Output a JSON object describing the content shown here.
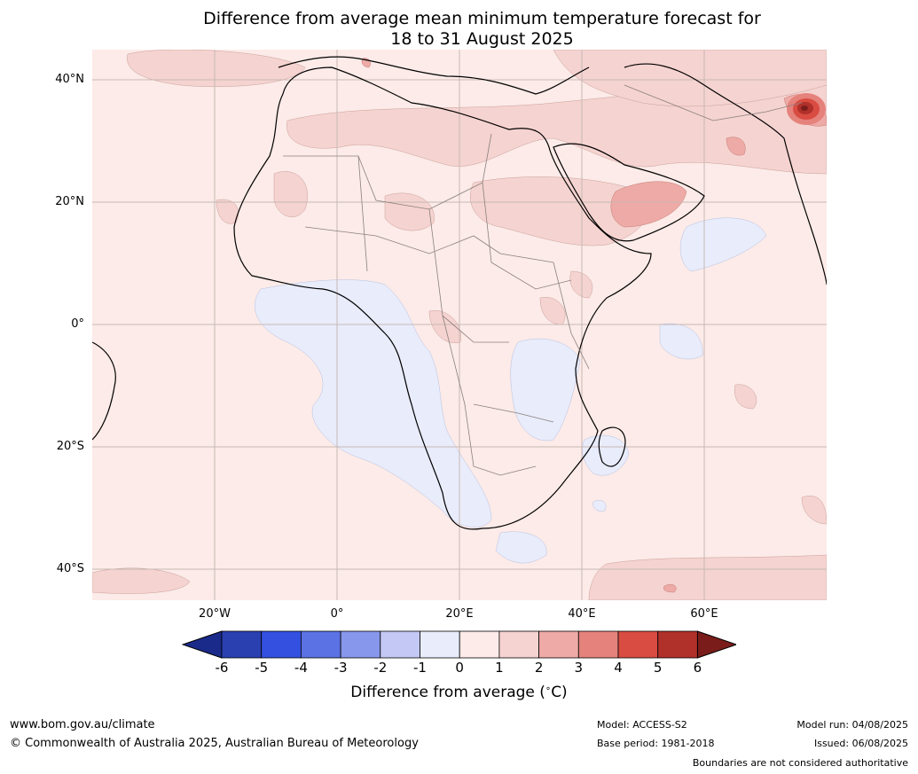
{
  "title": {
    "line1": "Difference from average mean minimum temperature forecast for",
    "line2": "18 to 31 August 2025"
  },
  "map": {
    "lat_labels": [
      "40°N",
      "20°N",
      "0°",
      "20°S",
      "40°S"
    ],
    "lon_labels": [
      "20°W",
      "0°",
      "20°E",
      "40°E",
      "60°E"
    ]
  },
  "colorbar": {
    "ticks": [
      "-6",
      "-5",
      "-4",
      "-3",
      "-2",
      "-1",
      "0",
      "1",
      "2",
      "3",
      "4",
      "5",
      "6"
    ],
    "colors": [
      "#1a2a8a",
      "#2a3fb0",
      "#3350e0",
      "#5b72e4",
      "#8797eb",
      "#c3c9f4",
      "#e8ecfb",
      "#fcebe8",
      "#f5d3d0",
      "#eeaaa6",
      "#e5827c",
      "#d94c42",
      "#b0302a",
      "#7a1d1a"
    ],
    "label": "Difference from average (°C)",
    "label_text": "Difference from average ($^\\circ$C)"
  },
  "footer": {
    "website": "www.bom.gov.au/climate",
    "copyright": "© Commonwealth of Australia 2025, Australian Bureau of Meteorology",
    "model": "Model: ACCESS-S2",
    "base_period": "Base period: 1981-2018",
    "model_run": "Model run: 04/08/2025",
    "issued": "Issued: 06/08/2025",
    "disclaimer": "Boundaries are not considered authoritative"
  }
}
